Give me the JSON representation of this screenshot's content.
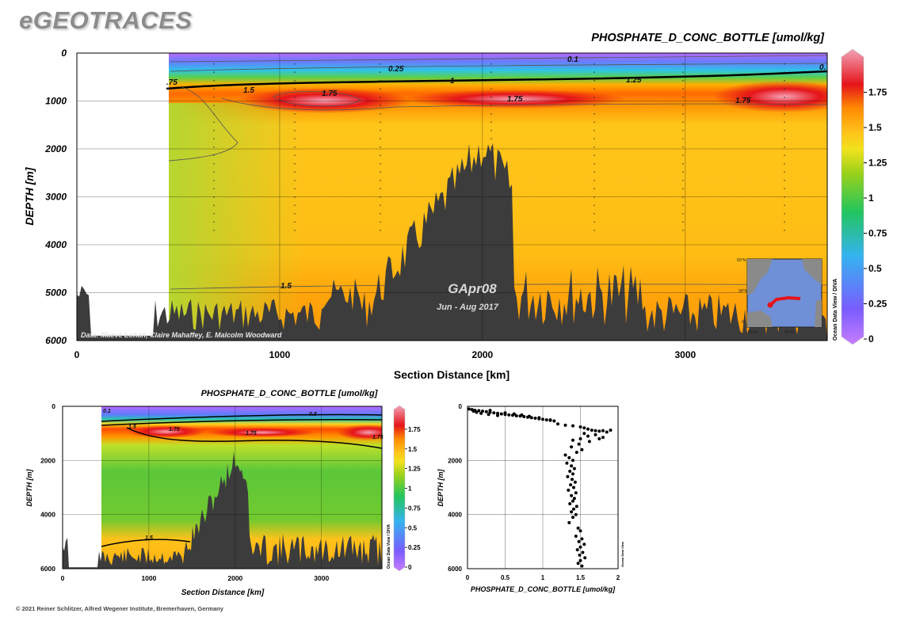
{
  "app": {
    "logo": "eGEOTRACES",
    "footer": "© 2021 Reiner Schlitzer, Alfred Wegener Institute, Bremerhaven, Germany"
  },
  "colors": {
    "bathymetry": "#3c3c3c",
    "scale": [
      "#c77dff",
      "#7a5cff",
      "#35b3f0",
      "#22c55e",
      "#9ad11a",
      "#f0e21c",
      "#ffc21a",
      "#ff8a00",
      "#e5141a",
      "#f2a3b8"
    ]
  },
  "chart_data": [
    {
      "type": "heatmap",
      "panel": "main-section",
      "title": "PHOSPHATE_D_CONC_BOTTLE [umol/kg]",
      "xlabel": "Section Distance [km]",
      "ylabel": "DEPTH [m]",
      "xlim": [
        0,
        3700
      ],
      "ylim": [
        6000,
        0
      ],
      "xticks": [
        "0",
        "1000",
        "2000",
        "3000"
      ],
      "yticks": [
        "0",
        "1000",
        "2000",
        "3000",
        "4000",
        "5000",
        "6000"
      ],
      "colorbar": {
        "ticks": [
          "0",
          "0.25",
          "0.5",
          "0.75",
          "1",
          "1.25",
          "1.5",
          "1.75"
        ],
        "range": [
          0,
          2
        ],
        "label": "Ocean Data View / DIVA"
      },
      "contour_labels": [
        "0.1",
        "0.25",
        "0.",
        ".75",
        "1",
        "1.25",
        "1.5",
        "1.75",
        "1.75",
        "1.75",
        "1.75",
        "1.5"
      ],
      "cruise": "GApr08",
      "period": "Jun - Aug 2017",
      "credit": "Data: Maeve Lohan, Claire Mahaffey, E. Malcolm Woodward",
      "inset_map_ticks": [
        "60°N",
        "30°N",
        "0°",
        "80°W",
        "40°W"
      ]
    },
    {
      "type": "heatmap",
      "panel": "small-section",
      "title": "PHOSPHATE_D_CONC_BOTTLE [umol/kg]",
      "xlabel": "Section Distance [km]",
      "ylabel": "DEPTH [m]",
      "xlim": [
        0,
        3700
      ],
      "ylim": [
        6000,
        0
      ],
      "xticks": [
        "0",
        "1000",
        "2000",
        "3000"
      ],
      "yticks": [
        "0",
        "2000",
        "4000",
        "6000"
      ],
      "colorbar": {
        "ticks": [
          "0",
          "0.25",
          "0.5",
          "0.75",
          "1",
          "1.25",
          "1.5",
          "1.75"
        ],
        "range": [
          0,
          2
        ],
        "label": "Ocean Data View / DIVA"
      },
      "contour_labels": [
        "0.1",
        "0.5",
        "1.5",
        "1.75",
        "1.75",
        "1.75",
        "1.5"
      ]
    },
    {
      "type": "scatter",
      "panel": "profile",
      "xlabel": "PHOSPHATE_D_CONC_BOTTLE [umol/kg]",
      "ylabel": "DEPTH [m]",
      "xlim": [
        0,
        2
      ],
      "ylim": [
        6000,
        0
      ],
      "xticks": [
        "0",
        "0.5",
        "1",
        "1.5",
        "2"
      ],
      "yticks": [
        "0",
        "2000",
        "4000",
        "6000"
      ],
      "label": "Ocean Data View",
      "points": [
        [
          0.02,
          100
        ],
        [
          0.06,
          120
        ],
        [
          0.1,
          150
        ],
        [
          0.15,
          160
        ],
        [
          0.2,
          180
        ],
        [
          0.25,
          200
        ],
        [
          0.3,
          220
        ],
        [
          0.35,
          240
        ],
        [
          0.4,
          260
        ],
        [
          0.45,
          280
        ],
        [
          0.5,
          300
        ],
        [
          0.55,
          320
        ],
        [
          0.6,
          330
        ],
        [
          0.65,
          350
        ],
        [
          0.7,
          360
        ],
        [
          0.75,
          380
        ],
        [
          0.8,
          400
        ],
        [
          0.85,
          420
        ],
        [
          0.9,
          440
        ],
        [
          0.95,
          460
        ],
        [
          1.0,
          480
        ],
        [
          1.05,
          500
        ],
        [
          1.1,
          520
        ],
        [
          1.15,
          540
        ],
        [
          0.08,
          180
        ],
        [
          0.18,
          260
        ],
        [
          0.28,
          300
        ],
        [
          0.4,
          340
        ],
        [
          0.5,
          240
        ],
        [
          0.62,
          280
        ],
        [
          0.72,
          320
        ],
        [
          0.82,
          370
        ],
        [
          0.95,
          420
        ],
        [
          1.1,
          500
        ],
        [
          0.3,
          150
        ],
        [
          0.12,
          220
        ],
        [
          1.2,
          650
        ],
        [
          1.3,
          700
        ],
        [
          1.4,
          720
        ],
        [
          1.5,
          760
        ],
        [
          1.55,
          800
        ],
        [
          1.6,
          840
        ],
        [
          1.65,
          880
        ],
        [
          1.7,
          900
        ],
        [
          1.75,
          920
        ],
        [
          1.8,
          900
        ],
        [
          1.85,
          950
        ],
        [
          1.9,
          880
        ],
        [
          1.55,
          1000
        ],
        [
          1.6,
          1100
        ],
        [
          1.7,
          1050
        ],
        [
          1.75,
          1200
        ],
        [
          1.8,
          1150
        ],
        [
          1.62,
          1300
        ],
        [
          1.5,
          1200
        ],
        [
          1.4,
          1250
        ],
        [
          1.48,
          1400
        ],
        [
          1.52,
          1600
        ],
        [
          1.45,
          1700
        ],
        [
          1.38,
          1500
        ],
        [
          1.3,
          1800
        ],
        [
          1.35,
          1900
        ],
        [
          1.4,
          2000
        ],
        [
          1.32,
          2100
        ],
        [
          1.38,
          2200
        ],
        [
          1.42,
          2300
        ],
        [
          1.36,
          2400
        ],
        [
          1.4,
          2500
        ],
        [
          1.33,
          2600
        ],
        [
          1.39,
          2700
        ],
        [
          1.43,
          2800
        ],
        [
          1.37,
          2900
        ],
        [
          1.41,
          3000
        ],
        [
          1.34,
          3100
        ],
        [
          1.44,
          3200
        ],
        [
          1.38,
          3300
        ],
        [
          1.42,
          3400
        ],
        [
          1.4,
          3500
        ],
        [
          1.36,
          3600
        ],
        [
          1.45,
          3700
        ],
        [
          1.41,
          3800
        ],
        [
          1.38,
          3900
        ],
        [
          1.44,
          4000
        ],
        [
          1.4,
          4100
        ],
        [
          1.35,
          4300
        ],
        [
          1.47,
          4500
        ],
        [
          1.5,
          4600
        ],
        [
          1.44,
          4800
        ],
        [
          1.52,
          4900
        ],
        [
          1.48,
          5000
        ],
        [
          1.55,
          5100
        ],
        [
          1.5,
          5200
        ],
        [
          1.46,
          5300
        ],
        [
          1.53,
          5400
        ],
        [
          1.49,
          5500
        ],
        [
          1.56,
          5600
        ],
        [
          1.5,
          5700
        ],
        [
          1.47,
          5800
        ],
        [
          1.52,
          5900
        ]
      ]
    }
  ]
}
